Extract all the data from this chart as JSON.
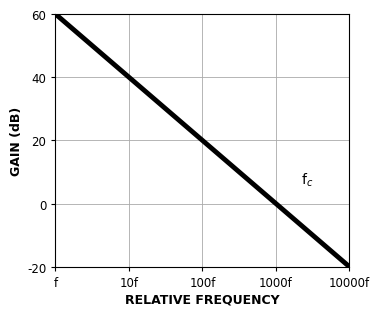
{
  "title": "",
  "xlabel": "RELATIVE FREQUENCY",
  "ylabel": "GAIN (dB)",
  "x_ticks": [
    1,
    10,
    100,
    1000,
    10000
  ],
  "x_tick_labels": [
    "f",
    "10f",
    "100f",
    "1000f",
    "10000f"
  ],
  "y_ticks": [
    -20,
    0,
    20,
    40,
    60
  ],
  "y_tick_labels": [
    "-20",
    "0",
    "20",
    "40",
    "60"
  ],
  "xlim": [
    1,
    10000
  ],
  "ylim": [
    -20,
    60
  ],
  "line_x": [
    1,
    10000
  ],
  "line_y": [
    60,
    -20
  ],
  "line_color": "#000000",
  "line_width": 3.5,
  "grid_color": "#aaaaaa",
  "grid_linewidth": 0.6,
  "fc_x": 2200,
  "fc_y": 5,
  "background_color": "#ffffff",
  "annotation_fontsize": 10,
  "tick_fontsize": 8.5,
  "label_fontsize": 9
}
